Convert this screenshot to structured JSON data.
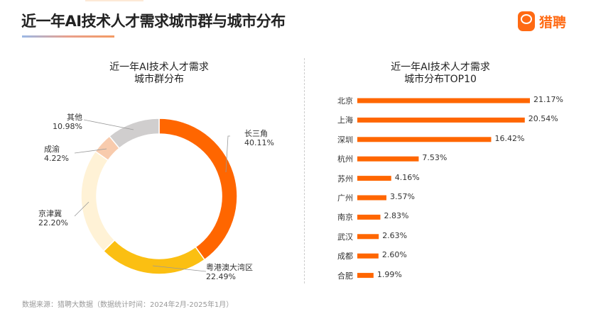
{
  "header": {
    "title": "近一年AI技术人才需求城市群与城市分布",
    "logo_text": "猎聘"
  },
  "footer": {
    "source": "数据来源：猎聘大数据（数据统计时间：2024年2月-2025年1月）"
  },
  "chart_data": [
    {
      "type": "pie",
      "title_line1": "近一年AI技术人才需求",
      "title_line2": "城市群分布",
      "donut": true,
      "slices": [
        {
          "name": "长三角",
          "value": 40.11,
          "label": "40.11%",
          "color": "#FF6600"
        },
        {
          "name": "粤港澳大湾区",
          "value": 22.49,
          "label": "22.49%",
          "color": "#FBBF12"
        },
        {
          "name": "京津冀",
          "value": 22.2,
          "label": "22.20%",
          "color": "#FFF2D6"
        },
        {
          "name": "成渝",
          "value": 4.22,
          "label": "4.22%",
          "color": "#F8CBAD"
        },
        {
          "name": "其他",
          "value": 10.98,
          "label": "10.98%",
          "color": "#D0CECE"
        }
      ]
    },
    {
      "type": "bar",
      "orientation": "horizontal",
      "title_line1": "近一年AI技术人才需求",
      "title_line2": "城市分布TOP10",
      "color": "#FF6600",
      "categories": [
        "北京",
        "上海",
        "深圳",
        "杭州",
        "苏州",
        "广州",
        "南京",
        "武汉",
        "成都",
        "合肥"
      ],
      "values": [
        21.17,
        20.54,
        16.42,
        7.53,
        4.16,
        3.57,
        2.83,
        2.63,
        2.6,
        1.99
      ],
      "labels": [
        "21.17%",
        "20.54%",
        "16.42%",
        "7.53%",
        "4.16%",
        "3.57%",
        "2.83%",
        "2.63%",
        "2.60%",
        "1.99%"
      ]
    }
  ]
}
